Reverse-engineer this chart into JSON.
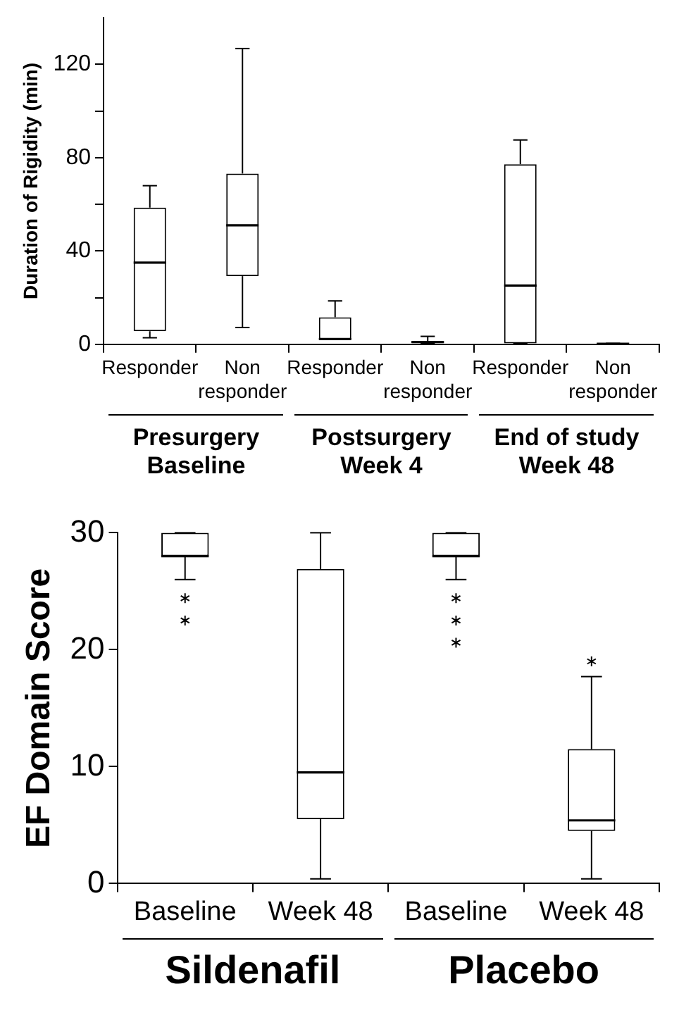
{
  "chart_data": [
    {
      "type": "box",
      "ylabel": "Duration of Rigidity (min)",
      "categories": [
        "Responder",
        "Non responder",
        "Responder",
        "Non responder",
        "Responder",
        "Non responder"
      ],
      "boxes": [
        {
          "low": 2.8,
          "q1": 5.6,
          "median": 35,
          "q3": 58.6,
          "high": 68
        },
        {
          "low": 7.2,
          "q1": 29.2,
          "median": 51,
          "q3": 73.2,
          "high": 126.8
        },
        {
          "low": 2.2,
          "q1": 2.2,
          "median": 2.2,
          "q3": 11.6,
          "high": 18.6
        },
        {
          "low": 0.4,
          "q1": 0.4,
          "median": 1,
          "q3": 1.4,
          "high": 3.4
        },
        {
          "low": 0.4,
          "q1": 0.4,
          "median": 25.2,
          "q3": 77.2,
          "high": 87.6
        },
        {
          "low": 0.2,
          "q1": 0.2,
          "median": 0.2,
          "q3": 0.4,
          "high": 0.4
        }
      ],
      "ylim": [
        0,
        140
      ],
      "yticks": [
        0,
        {
          "value": 20,
          "label": null
        },
        40,
        {
          "value": 60,
          "label": null
        },
        80,
        {
          "value": 100,
          "label": null
        },
        120
      ],
      "annotations": [
        "Presurgery Baseline",
        "Postsurgery Week 4",
        "End of study Week 48"
      ],
      "grid": false
    },
    {
      "type": "box",
      "ylabel": "EF Domain Score",
      "categories": [
        "Baseline",
        "Week 48",
        "Baseline",
        "Week 48"
      ],
      "boxes": [
        {
          "low": 26,
          "q1": 28,
          "median": 28,
          "q3": 30,
          "high": 30,
          "outliers": [
            24.4,
            22.5
          ]
        },
        {
          "low": 0.4,
          "q1": 5.5,
          "median": 9.5,
          "q3": 26.9,
          "high": 30
        },
        {
          "low": 26,
          "q1": 28,
          "median": 28,
          "q3": 30,
          "high": 30,
          "outliers": [
            24.4,
            22.5,
            20.6
          ]
        },
        {
          "low": 0.4,
          "q1": 4.5,
          "median": 5.4,
          "q3": 11.5,
          "high": 17.7,
          "outliers": [
            19.0
          ]
        }
      ],
      "ylim": [
        0,
        30
      ],
      "yticks": [
        0,
        10,
        20,
        30
      ],
      "annotations": [
        "Sildenafil",
        "Placebo"
      ],
      "grid": false
    }
  ]
}
